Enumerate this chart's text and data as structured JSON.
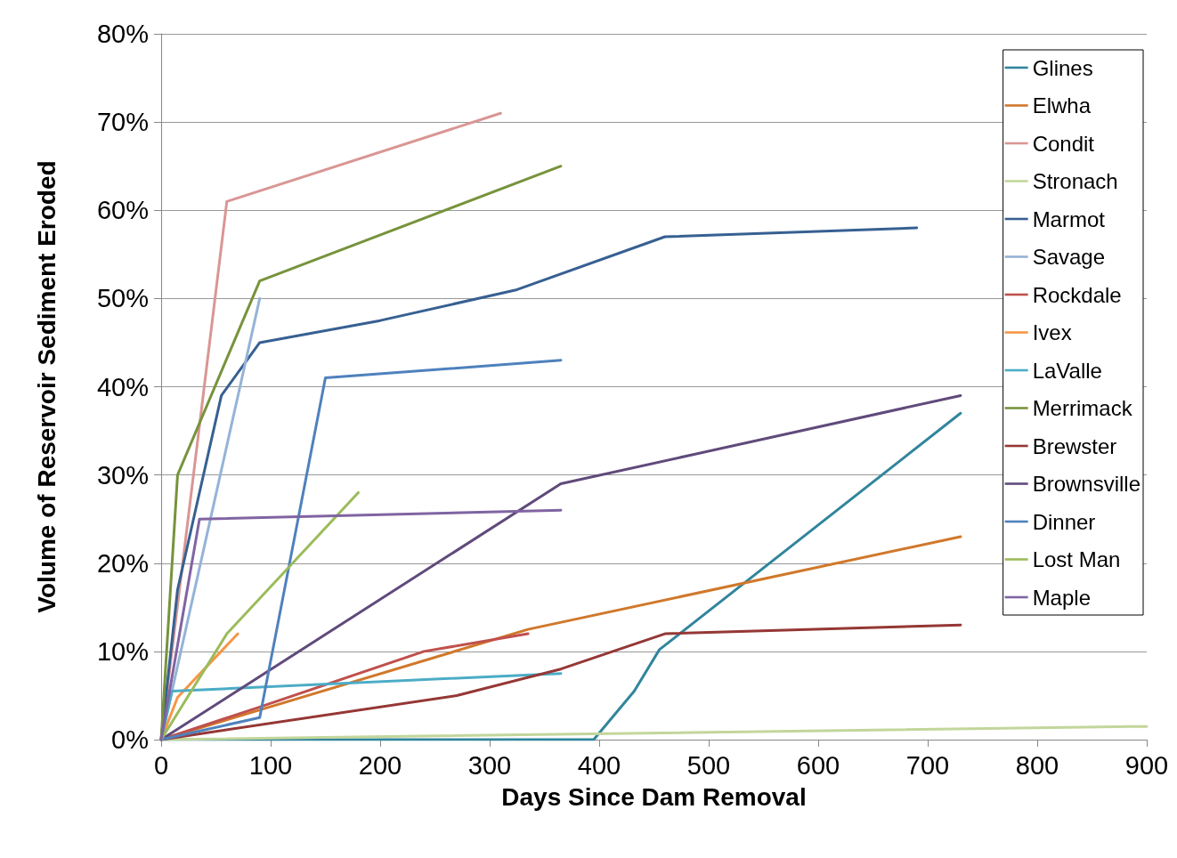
{
  "chart_data": {
    "type": "line",
    "xlabel": "Days Since Dam Removal",
    "ylabel": "Volume of Reservoir Sediment Eroded",
    "xlim": [
      0,
      900
    ],
    "xticks": [
      0,
      100,
      200,
      300,
      400,
      500,
      600,
      700,
      800,
      900
    ],
    "ylim": [
      0,
      80
    ],
    "yticks": [
      {
        "value": 0,
        "label": "0%"
      },
      {
        "value": 10,
        "label": "10%"
      },
      {
        "value": 20,
        "label": "20%"
      },
      {
        "value": 30,
        "label": "30%"
      },
      {
        "value": 40,
        "label": "40%"
      },
      {
        "value": 50,
        "label": "50%"
      },
      {
        "value": 60,
        "label": "60%"
      },
      {
        "value": 70,
        "label": "70%"
      },
      {
        "value": 80,
        "label": "80%"
      }
    ],
    "grid": "y",
    "legend": "top right",
    "marker": "none",
    "line_style": "solid",
    "series": [
      {
        "name": "Glines",
        "color": "#31859c",
        "x": [
          0,
          395,
          432,
          455,
          730
        ],
        "values": [
          0,
          0,
          5.5,
          10.2,
          37
        ]
      },
      {
        "name": "Elwha",
        "color": "#d0782a",
        "x": [
          0,
          335,
          730
        ],
        "values": [
          0,
          12.5,
          23
        ]
      },
      {
        "name": "Condit",
        "color": "#d99694",
        "x": [
          0,
          60,
          310
        ],
        "values": [
          0,
          61,
          71
        ]
      },
      {
        "name": "Stronach",
        "color": "#c3d69b",
        "x": [
          0,
          900
        ],
        "values": [
          0,
          1.5
        ]
      },
      {
        "name": "Marmot",
        "color": "#376092",
        "x": [
          0,
          15,
          55,
          90,
          200,
          325,
          460,
          690
        ],
        "values": [
          0,
          17,
          39,
          45,
          47.5,
          51,
          57,
          58
        ]
      },
      {
        "name": "Savage",
        "color": "#95b3d7",
        "x": [
          0,
          90
        ],
        "values": [
          0,
          50
        ]
      },
      {
        "name": "Rockdale",
        "color": "#c0504d",
        "x": [
          0,
          90,
          240,
          335
        ],
        "values": [
          0,
          3.7,
          10,
          12
        ]
      },
      {
        "name": "Ivex",
        "color": "#f79646",
        "x": [
          0,
          15,
          70
        ],
        "values": [
          0,
          4.8,
          12
        ]
      },
      {
        "name": "LaValle",
        "color": "#4bacc6",
        "x": [
          0,
          10,
          365
        ],
        "values": [
          0,
          5.5,
          7.5
        ]
      },
      {
        "name": "Merrimack",
        "color": "#77933c",
        "x": [
          0,
          15,
          90,
          365
        ],
        "values": [
          0,
          30,
          52,
          65
        ]
      },
      {
        "name": "Brewster",
        "color": "#953735",
        "x": [
          0,
          270,
          365,
          460,
          730
        ],
        "values": [
          0,
          5,
          8,
          12,
          13
        ]
      },
      {
        "name": "Brownsville",
        "color": "#604a7b",
        "x": [
          0,
          365,
          730
        ],
        "values": [
          0,
          29,
          39
        ]
      },
      {
        "name": "Dinner",
        "color": "#4f81bd",
        "x": [
          0,
          90,
          150,
          365
        ],
        "values": [
          0,
          2.5,
          41,
          43
        ]
      },
      {
        "name": "Lost Man",
        "color": "#9bbb59",
        "x": [
          0,
          60,
          180
        ],
        "values": [
          0,
          12,
          28
        ]
      },
      {
        "name": "Maple",
        "color": "#8064a2",
        "x": [
          0,
          35,
          365
        ],
        "values": [
          0,
          25,
          26
        ]
      }
    ]
  }
}
